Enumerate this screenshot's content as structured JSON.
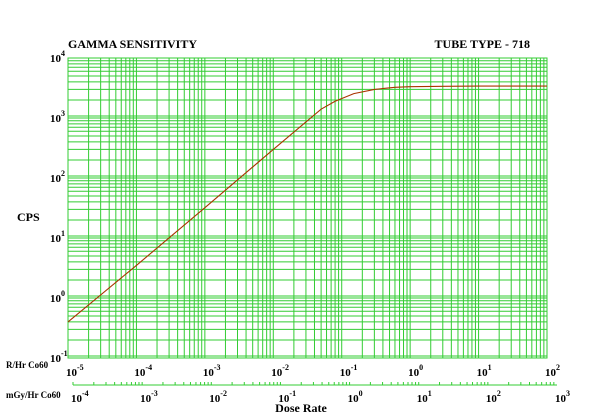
{
  "chart_data": {
    "type": "line",
    "title": "GAMMA SENSITIVITY",
    "subtitle": "TUBE TYPE - 718",
    "ylabel": "CPS",
    "xlabel": "Dose Rate",
    "x_scale": "log",
    "y_scale": "log",
    "xlim_R_per_hr": [
      1e-05,
      100
    ],
    "ylim_cps": [
      0.1,
      10000
    ],
    "grid": true,
    "grid_color": "#33cc33",
    "line_color": "#aa3300",
    "axis_rows": [
      {
        "label": "R/Hr Co60",
        "ticks": [
          {
            "base": "10",
            "exp": "-5"
          },
          {
            "base": "10",
            "exp": "-4"
          },
          {
            "base": "10",
            "exp": "-3"
          },
          {
            "base": "10",
            "exp": "-2"
          },
          {
            "base": "10",
            "exp": "-1"
          },
          {
            "base": "10",
            "exp": "0"
          },
          {
            "base": "10",
            "exp": "1"
          },
          {
            "base": "10",
            "exp": "2"
          }
        ]
      },
      {
        "label": "mGy/Hr Co60",
        "ticks": [
          {
            "base": "10",
            "exp": "-4"
          },
          {
            "base": "10",
            "exp": "-3"
          },
          {
            "base": "10",
            "exp": "-2"
          },
          {
            "base": "10",
            "exp": "-1"
          },
          {
            "base": "10",
            "exp": "0"
          },
          {
            "base": "10",
            "exp": "1"
          },
          {
            "base": "10",
            "exp": "2"
          },
          {
            "base": "10",
            "exp": "3"
          }
        ]
      }
    ],
    "y_ticks": [
      {
        "base": "10",
        "exp": "-1"
      },
      {
        "base": "10",
        "exp": "0"
      },
      {
        "base": "10",
        "exp": "1"
      },
      {
        "base": "10",
        "exp": "2"
      },
      {
        "base": "10",
        "exp": "3"
      },
      {
        "base": "10",
        "exp": "4"
      }
    ],
    "series": [
      {
        "x": [
          1e-05,
          0.0001,
          0.001,
          0.01,
          0.05,
          0.08,
          0.15,
          0.3,
          0.6,
          1,
          3,
          10,
          100
        ],
        "y": [
          0.4,
          3.5,
          32,
          300,
          1400,
          1900,
          2550,
          3000,
          3250,
          3330,
          3380,
          3400,
          3400
        ]
      }
    ]
  }
}
